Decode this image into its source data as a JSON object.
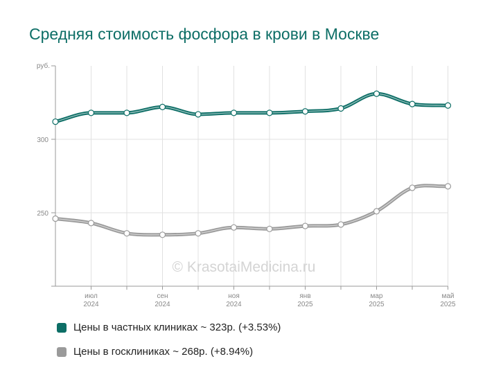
{
  "chart_data": {
    "type": "line",
    "title": "Средняя стоимость фосфора в крови в Москве",
    "ylabel": "руб.",
    "ylim": [
      200,
      350
    ],
    "yticks": [
      250,
      300
    ],
    "x_tick_labels": [
      {
        "month": "июл",
        "year": "2024"
      },
      {
        "month": "сен",
        "year": "2024"
      },
      {
        "month": "ноя",
        "year": "2024"
      },
      {
        "month": "янв",
        "year": "2025"
      },
      {
        "month": "мар",
        "year": "2025"
      },
      {
        "month": "май",
        "year": "2025"
      }
    ],
    "x": [
      "2024-06",
      "2024-07",
      "2024-08",
      "2024-09",
      "2024-10",
      "2024-11",
      "2024-12",
      "2025-01",
      "2025-02",
      "2025-03",
      "2025-04",
      "2025-05"
    ],
    "series": [
      {
        "name": "Цены в частных клиниках ~ 323р. (+3.53%)",
        "color": "#0d6e66",
        "values": [
          312,
          318,
          318,
          322,
          317,
          318,
          318,
          319,
          321,
          331,
          324,
          323
        ]
      },
      {
        "name": "Цены в госклиниках ~ 268р. (+8.94%)",
        "color": "#9a9a9a",
        "values": [
          246,
          243,
          236,
          235,
          236,
          240,
          239,
          241,
          242,
          251,
          267,
          268
        ]
      }
    ],
    "grid": true,
    "legend_position": "bottom-left",
    "watermark": "© KrasotaiMedicina.ru"
  }
}
